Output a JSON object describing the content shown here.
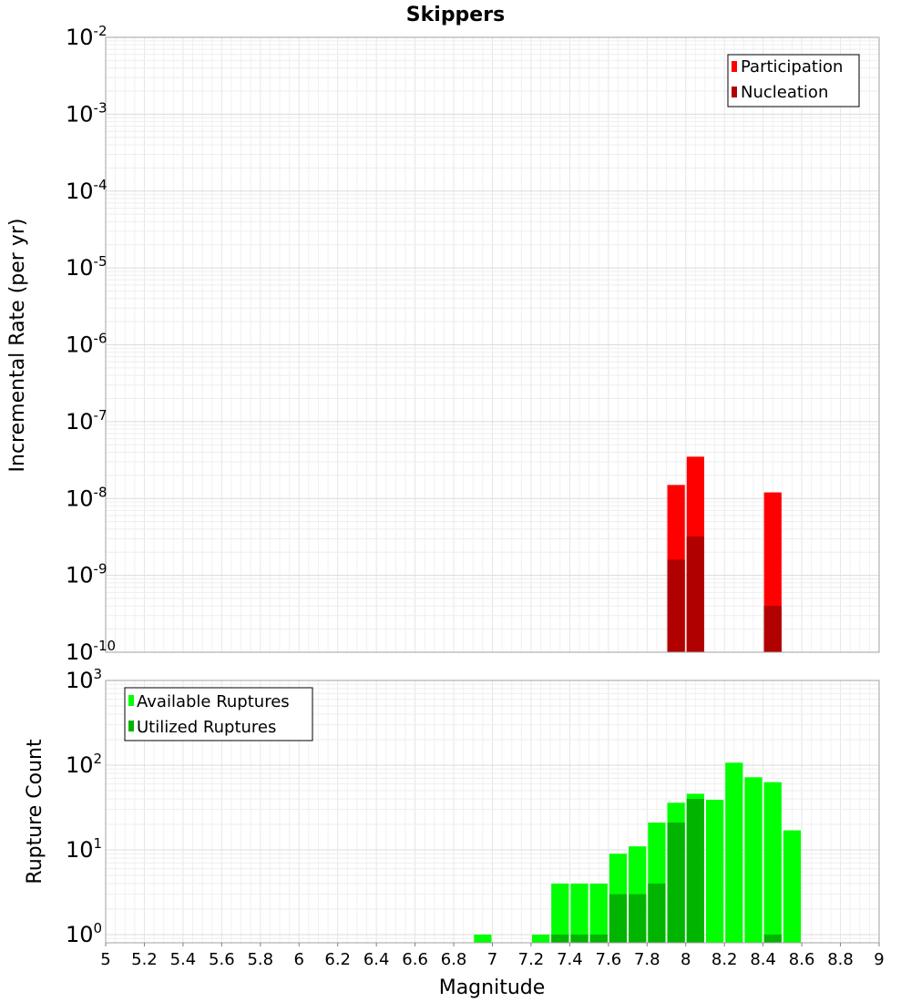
{
  "figure_title": "Skippers",
  "chart_data": [
    {
      "type": "bar",
      "yscale": "log",
      "title": "Skippers",
      "xlabel": "",
      "ylabel": "Incremental Rate (per yr)",
      "xlim": [
        5,
        9
      ],
      "ylim": [
        1e-10,
        0.01
      ],
      "ytick_labels": [
        {
          "base": "10",
          "exp": "-10"
        },
        {
          "base": "10",
          "exp": "-9"
        },
        {
          "base": "10",
          "exp": "-8"
        },
        {
          "base": "10",
          "exp": "-7"
        },
        {
          "base": "10",
          "exp": "-6"
        },
        {
          "base": "10",
          "exp": "-5"
        },
        {
          "base": "10",
          "exp": "-4"
        },
        {
          "base": "10",
          "exp": "-3"
        },
        {
          "base": "10",
          "exp": "-2"
        }
      ],
      "bar_width": 0.1,
      "grid": true,
      "legend_position": "top-right",
      "series": [
        {
          "name": "Participation",
          "color": "#ff0000",
          "x": [
            7.95,
            8.05,
            8.45
          ],
          "values": [
            1.5e-08,
            3.5e-08,
            1.2e-08
          ]
        },
        {
          "name": "Nucleation",
          "color": "#b00000",
          "x": [
            7.95,
            8.05,
            8.45
          ],
          "values": [
            1.6e-09,
            3.2e-09,
            4e-10
          ]
        }
      ]
    },
    {
      "type": "bar",
      "yscale": "log",
      "xlabel": "Magnitude",
      "ylabel": "Rupture Count",
      "xlim": [
        5,
        9
      ],
      "ylim": [
        0.8,
        1000
      ],
      "ytick_labels": [
        {
          "base": "10",
          "exp": "0"
        },
        {
          "base": "10",
          "exp": "1"
        },
        {
          "base": "10",
          "exp": "2"
        },
        {
          "base": "10",
          "exp": "3"
        }
      ],
      "xtick_labels": [
        "5",
        "5.2",
        "5.4",
        "5.6",
        "5.8",
        "6",
        "6.2",
        "6.4",
        "6.6",
        "6.8",
        "7",
        "7.2",
        "7.4",
        "7.6",
        "7.8",
        "8",
        "8.2",
        "8.4",
        "8.6",
        "8.8",
        "9"
      ],
      "bar_width": 0.1,
      "grid": true,
      "legend_position": "top-left",
      "series": [
        {
          "name": "Available Ruptures",
          "color": "#00ff00",
          "x": [
            6.95,
            7.25,
            7.35,
            7.45,
            7.55,
            7.65,
            7.75,
            7.85,
            7.95,
            8.05,
            8.15,
            8.25,
            8.35,
            8.45,
            8.55
          ],
          "values": [
            1,
            1,
            4,
            4,
            4,
            9,
            11,
            21,
            36,
            46,
            39,
            107,
            72,
            63,
            17
          ]
        },
        {
          "name": "Utilized Ruptures",
          "color": "#00b400",
          "x": [
            7.35,
            7.45,
            7.55,
            7.65,
            7.75,
            7.85,
            7.95,
            8.05,
            8.45
          ],
          "values": [
            1,
            1,
            1,
            3,
            3,
            4,
            21,
            40,
            1
          ]
        }
      ]
    }
  ]
}
